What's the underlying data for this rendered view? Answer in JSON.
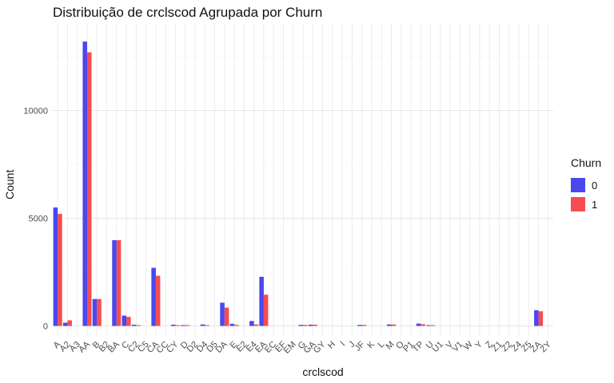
{
  "chart_data": {
    "type": "bar",
    "title": "Distribuição de crclscod Agrupada por Churn",
    "xlabel": "crclscod",
    "ylabel": "Count",
    "ylim": [
      0,
      14000
    ],
    "yticks": [
      0,
      5000,
      10000
    ],
    "ytick_labels": [
      "0",
      "5000",
      "10000"
    ],
    "grid": true,
    "legend_position": "right",
    "legend_title": "Churn",
    "categories": [
      "A",
      "A2",
      "A3",
      "AA",
      "B",
      "B2",
      "BA",
      "C",
      "C2",
      "C5",
      "CA",
      "CC",
      "CY",
      "D",
      "D2",
      "D4",
      "D5",
      "DA",
      "E",
      "E2",
      "E4",
      "EA",
      "EC",
      "EF",
      "EM",
      "G",
      "GA",
      "GY",
      "H",
      "I",
      "J",
      "JF",
      "K",
      "L",
      "M",
      "O",
      "P1",
      "TP",
      "U",
      "U1",
      "V",
      "V1",
      "W",
      "Y",
      "Z",
      "Z1",
      "Z2",
      "Z4",
      "Z5",
      "ZA",
      "ZY"
    ],
    "series": [
      {
        "name": "0",
        "color": "#4a47f0",
        "values": [
          5500,
          150,
          0,
          13200,
          1250,
          0,
          3980,
          480,
          60,
          0,
          2700,
          0,
          60,
          40,
          0,
          70,
          0,
          1080,
          100,
          0,
          230,
          2280,
          0,
          0,
          0,
          50,
          60,
          0,
          0,
          0,
          0,
          50,
          0,
          0,
          70,
          0,
          0,
          110,
          30,
          0,
          0,
          0,
          0,
          0,
          0,
          0,
          0,
          0,
          0,
          730,
          0
        ]
      },
      {
        "name": "1",
        "color": "#f54d50",
        "values": [
          5200,
          260,
          0,
          12700,
          1250,
          0,
          3980,
          420,
          20,
          0,
          2330,
          0,
          20,
          40,
          0,
          20,
          0,
          850,
          50,
          0,
          70,
          1450,
          0,
          0,
          0,
          50,
          60,
          0,
          0,
          0,
          0,
          50,
          0,
          0,
          70,
          0,
          0,
          80,
          20,
          0,
          0,
          0,
          0,
          0,
          0,
          0,
          0,
          0,
          0,
          680,
          0
        ]
      }
    ]
  }
}
